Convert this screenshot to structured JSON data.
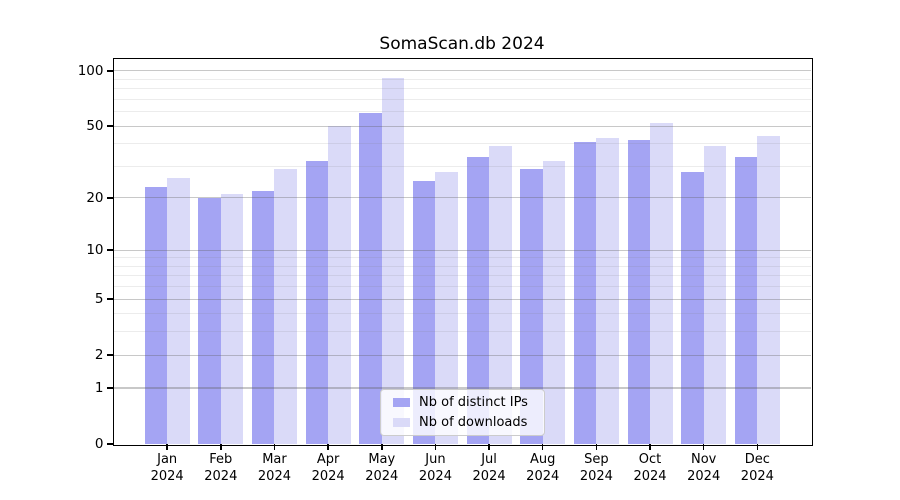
{
  "title": "SomaScan.db 2024",
  "chart_data": {
    "type": "bar",
    "title": "SomaScan.db 2024",
    "categories": [
      "Jan",
      "Feb",
      "Mar",
      "Apr",
      "May",
      "Jun",
      "Jul",
      "Aug",
      "Sep",
      "Oct",
      "Nov",
      "Dec"
    ],
    "category_year": "2024",
    "series": [
      {
        "name": "Nb of distinct IPs",
        "color": "#a4a4f3",
        "values": [
          23,
          20,
          22,
          32,
          59,
          25,
          34,
          29,
          41,
          42,
          28,
          34
        ]
      },
      {
        "name": "Nb of downloads",
        "color": "#dadaf8",
        "values": [
          26,
          21,
          29,
          50,
          91,
          28,
          39,
          32,
          43,
          52,
          39,
          44
        ]
      }
    ],
    "xlabel": "",
    "ylabel": "",
    "yscale": "log1p",
    "ylim": [
      0,
      116
    ],
    "y_major_ticks": [
      0,
      1,
      2,
      5,
      10,
      20,
      50,
      100
    ],
    "y_minor_ticks": [
      3,
      4,
      6,
      7,
      8,
      9,
      30,
      40,
      60,
      70,
      80,
      90
    ],
    "grid": true,
    "legend_position": "lower center"
  },
  "colors": {
    "background": "#ffffff",
    "spine": "#000000",
    "grid_major": "#c7c7c7",
    "grid_minor": "#ececec",
    "text": "#000000",
    "legend_border": "#cccccc"
  }
}
